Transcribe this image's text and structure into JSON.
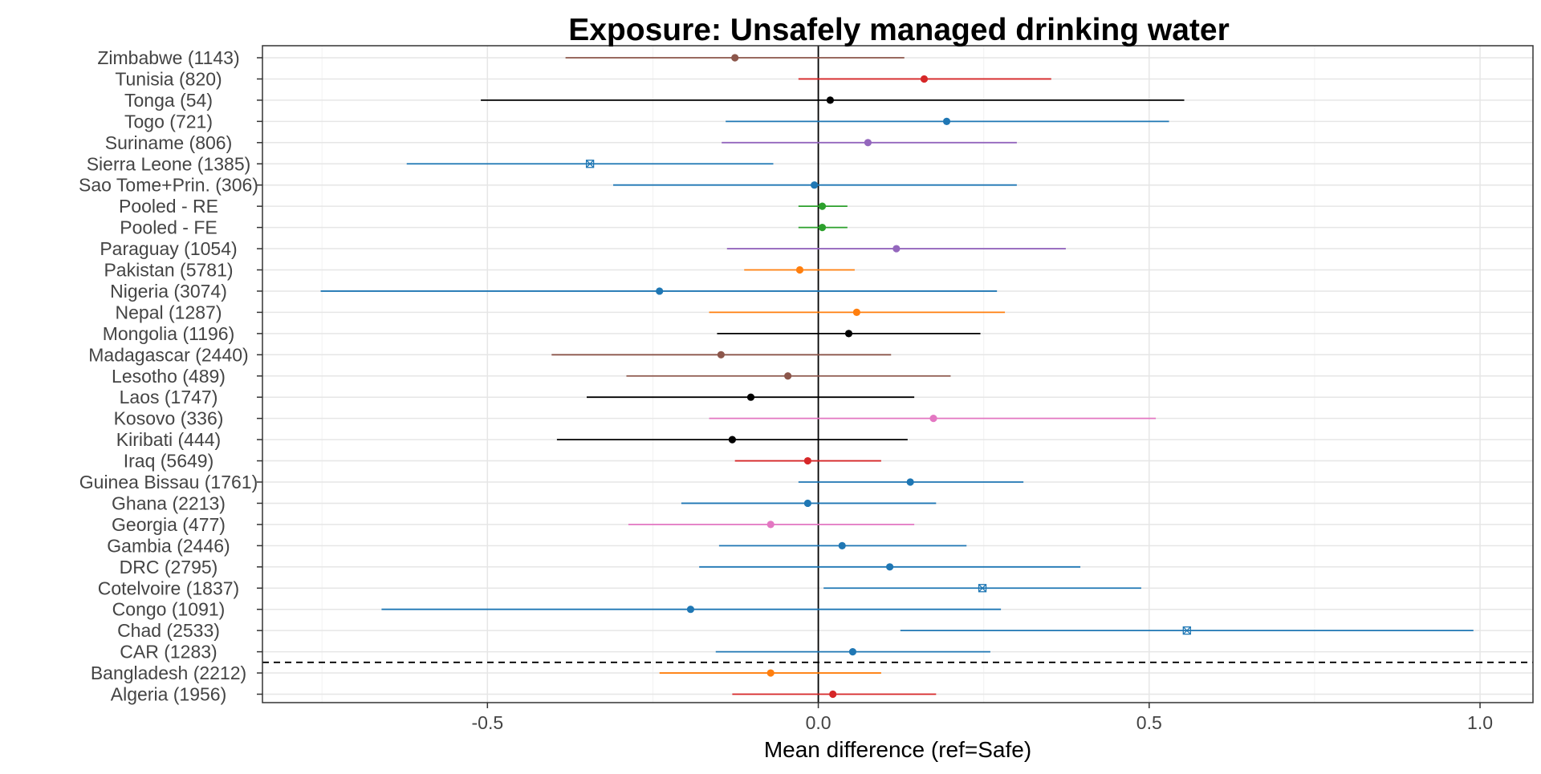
{
  "chart_data": {
    "type": "forest",
    "title": "Exposure: Unsafely managed drinking water",
    "xlabel": "Mean difference (ref=Safe)",
    "xlim": [
      -0.84,
      1.08
    ],
    "xticks": [
      -0.5,
      0.0,
      0.5,
      1.0
    ],
    "xtick_labels": [
      "-0.5",
      "0.0",
      "0.5",
      "1.0"
    ],
    "reference_line_x": 0.0,
    "dashed_separator": "between CAR (1283) and Bangladesh (2212)",
    "grid": true,
    "colors": {
      "brown": "#8c564b",
      "red": "#d62728",
      "black": "#000000",
      "blue": "#1f77b4",
      "purple": "#9467bd",
      "green": "#2ca02c",
      "orange": "#ff7f0e",
      "pink": "#e377c2"
    },
    "rows": [
      {
        "label": "Zimbabwe (1143)",
        "estimate": -0.126,
        "lower": -0.382,
        "upper": 0.13,
        "color": "#8c564b",
        "marker": "dot"
      },
      {
        "label": "Tunisia (820)",
        "estimate": 0.16,
        "lower": -0.03,
        "upper": 0.352,
        "color": "#d62728",
        "marker": "dot"
      },
      {
        "label": "Tonga (54)",
        "estimate": 0.018,
        "lower": -0.51,
        "upper": 0.553,
        "color": "#000000",
        "marker": "dot"
      },
      {
        "label": "Togo (721)",
        "estimate": 0.194,
        "lower": -0.14,
        "upper": 0.53,
        "color": "#1f77b4",
        "marker": "dot"
      },
      {
        "label": "Suriname (806)",
        "estimate": 0.075,
        "lower": -0.146,
        "upper": 0.3,
        "color": "#9467bd",
        "marker": "dot"
      },
      {
        "label": "Sierra Leone (1385)",
        "estimate": -0.345,
        "lower": -0.622,
        "upper": -0.068,
        "color": "#1f77b4",
        "marker": "cross"
      },
      {
        "label": "Sao Tome+Prin. (306)",
        "estimate": -0.006,
        "lower": -0.31,
        "upper": 0.3,
        "color": "#1f77b4",
        "marker": "dot"
      },
      {
        "label": "Pooled - RE",
        "estimate": 0.006,
        "lower": -0.03,
        "upper": 0.044,
        "color": "#2ca02c",
        "marker": "dot"
      },
      {
        "label": "Pooled - FE",
        "estimate": 0.006,
        "lower": -0.03,
        "upper": 0.044,
        "color": "#2ca02c",
        "marker": "dot"
      },
      {
        "label": "Paraguay (1054)",
        "estimate": 0.118,
        "lower": -0.138,
        "upper": 0.374,
        "color": "#9467bd",
        "marker": "dot"
      },
      {
        "label": "Pakistan (5781)",
        "estimate": -0.028,
        "lower": -0.112,
        "upper": 0.055,
        "color": "#ff7f0e",
        "marker": "dot"
      },
      {
        "label": "Nigeria (3074)",
        "estimate": -0.24,
        "lower": -0.752,
        "upper": 0.27,
        "color": "#1f77b4",
        "marker": "dot"
      },
      {
        "label": "Nepal (1287)",
        "estimate": 0.058,
        "lower": -0.165,
        "upper": 0.282,
        "color": "#ff7f0e",
        "marker": "dot"
      },
      {
        "label": "Mongolia (1196)",
        "estimate": 0.046,
        "lower": -0.153,
        "upper": 0.245,
        "color": "#000000",
        "marker": "dot"
      },
      {
        "label": "Madagascar (2440)",
        "estimate": -0.147,
        "lower": -0.403,
        "upper": 0.11,
        "color": "#8c564b",
        "marker": "dot"
      },
      {
        "label": "Lesotho (489)",
        "estimate": -0.046,
        "lower": -0.29,
        "upper": 0.2,
        "color": "#8c564b",
        "marker": "dot"
      },
      {
        "label": "Laos (1747)",
        "estimate": -0.102,
        "lower": -0.35,
        "upper": 0.145,
        "color": "#000000",
        "marker": "dot"
      },
      {
        "label": "Kosovo (336)",
        "estimate": 0.174,
        "lower": -0.165,
        "upper": 0.51,
        "color": "#e377c2",
        "marker": "dot"
      },
      {
        "label": "Kiribati (444)",
        "estimate": -0.13,
        "lower": -0.395,
        "upper": 0.135,
        "color": "#000000",
        "marker": "dot"
      },
      {
        "label": "Iraq (5649)",
        "estimate": -0.016,
        "lower": -0.126,
        "upper": 0.095,
        "color": "#d62728",
        "marker": "dot"
      },
      {
        "label": "Guinea Bissau (1761)",
        "estimate": 0.139,
        "lower": -0.03,
        "upper": 0.31,
        "color": "#1f77b4",
        "marker": "dot"
      },
      {
        "label": "Ghana (2213)",
        "estimate": -0.016,
        "lower": -0.207,
        "upper": 0.178,
        "color": "#1f77b4",
        "marker": "dot"
      },
      {
        "label": "Georgia (477)",
        "estimate": -0.072,
        "lower": -0.287,
        "upper": 0.145,
        "color": "#e377c2",
        "marker": "dot"
      },
      {
        "label": "Gambia (2446)",
        "estimate": 0.036,
        "lower": -0.15,
        "upper": 0.224,
        "color": "#1f77b4",
        "marker": "dot"
      },
      {
        "label": "DRC (2795)",
        "estimate": 0.108,
        "lower": -0.18,
        "upper": 0.396,
        "color": "#1f77b4",
        "marker": "dot"
      },
      {
        "label": "Cotelvoire (1837)",
        "estimate": 0.248,
        "lower": 0.008,
        "upper": 0.488,
        "color": "#1f77b4",
        "marker": "cross"
      },
      {
        "label": "Congo (1091)",
        "estimate": -0.193,
        "lower": -0.66,
        "upper": 0.276,
        "color": "#1f77b4",
        "marker": "dot"
      },
      {
        "label": "Chad (2533)",
        "estimate": 0.557,
        "lower": 0.124,
        "upper": 0.99,
        "color": "#1f77b4",
        "marker": "cross"
      },
      {
        "label": "CAR (1283)",
        "estimate": 0.052,
        "lower": -0.155,
        "upper": 0.26,
        "color": "#1f77b4",
        "marker": "dot"
      },
      {
        "label": "Bangladesh (2212)",
        "estimate": -0.072,
        "lower": -0.24,
        "upper": 0.095,
        "color": "#ff7f0e",
        "marker": "dot"
      },
      {
        "label": "Algeria (1956)",
        "estimate": 0.022,
        "lower": -0.13,
        "upper": 0.178,
        "color": "#d62728",
        "marker": "dot"
      }
    ]
  }
}
